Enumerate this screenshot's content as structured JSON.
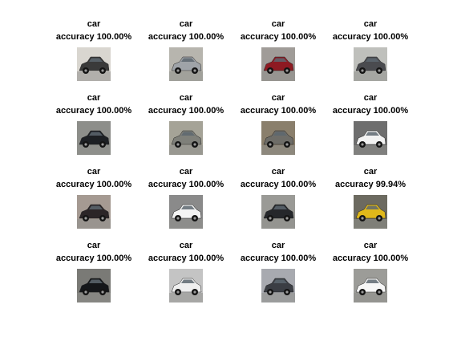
{
  "chart_data": {
    "type": "image-grid",
    "rows": 4,
    "cols": 4,
    "images": [
      {
        "label": "car",
        "accuracy_text": "accuracy 100.00%",
        "accuracy": 100.0,
        "car_color": "#3a3a3a",
        "bg_color": "#d9d6d0"
      },
      {
        "label": "car",
        "accuracy_text": "accuracy 100.00%",
        "accuracy": 100.0,
        "car_color": "#9fa3a8",
        "bg_color": "#b7b5ae"
      },
      {
        "label": "car",
        "accuracy_text": "accuracy 100.00%",
        "accuracy": 100.0,
        "car_color": "#8e1a22",
        "bg_color": "#a09c98"
      },
      {
        "label": "car",
        "accuracy_text": "accuracy 100.00%",
        "accuracy": 100.0,
        "car_color": "#4a4b4f",
        "bg_color": "#bfc0bc"
      },
      {
        "label": "car",
        "accuracy_text": "accuracy 100.00%",
        "accuracy": 100.0,
        "car_color": "#1d2024",
        "bg_color": "#8d8e8a"
      },
      {
        "label": "car",
        "accuracy_text": "accuracy 100.00%",
        "accuracy": 100.0,
        "car_color": "#7f807a",
        "bg_color": "#a5a397"
      },
      {
        "label": "car",
        "accuracy_text": "accuracy 100.00%",
        "accuracy": 100.0,
        "car_color": "#6e6d68",
        "bg_color": "#8a7f6c"
      },
      {
        "label": "car",
        "accuracy_text": "accuracy 100.00%",
        "accuracy": 100.0,
        "car_color": "#f2f2f2",
        "bg_color": "#6e6e6e"
      },
      {
        "label": "car",
        "accuracy_text": "accuracy 100.00%",
        "accuracy": 100.0,
        "car_color": "#2b2527",
        "bg_color": "#a59a92"
      },
      {
        "label": "car",
        "accuracy_text": "accuracy 100.00%",
        "accuracy": 100.0,
        "car_color": "#f4f4f4",
        "bg_color": "#8a8a8a"
      },
      {
        "label": "car",
        "accuracy_text": "accuracy 100.00%",
        "accuracy": 100.0,
        "car_color": "#25272b",
        "bg_color": "#9a9a96"
      },
      {
        "label": "car",
        "accuracy_text": "accuracy 99.94%",
        "accuracy": 99.94,
        "car_color": "#e0b81a",
        "bg_color": "#6c6a60"
      },
      {
        "label": "car",
        "accuracy_text": "accuracy 100.00%",
        "accuracy": 100.0,
        "car_color": "#15171a",
        "bg_color": "#7a7a76"
      },
      {
        "label": "car",
        "accuracy_text": "accuracy 100.00%",
        "accuracy": 100.0,
        "car_color": "#efefef",
        "bg_color": "#c4c4c4"
      },
      {
        "label": "car",
        "accuracy_text": "accuracy 100.00%",
        "accuracy": 100.0,
        "car_color": "#3b3e44",
        "bg_color": "#a8aab0"
      },
      {
        "label": "car",
        "accuracy_text": "accuracy 100.00%",
        "accuracy": 100.0,
        "car_color": "#f6f6f6",
        "bg_color": "#9c9c98"
      }
    ]
  }
}
